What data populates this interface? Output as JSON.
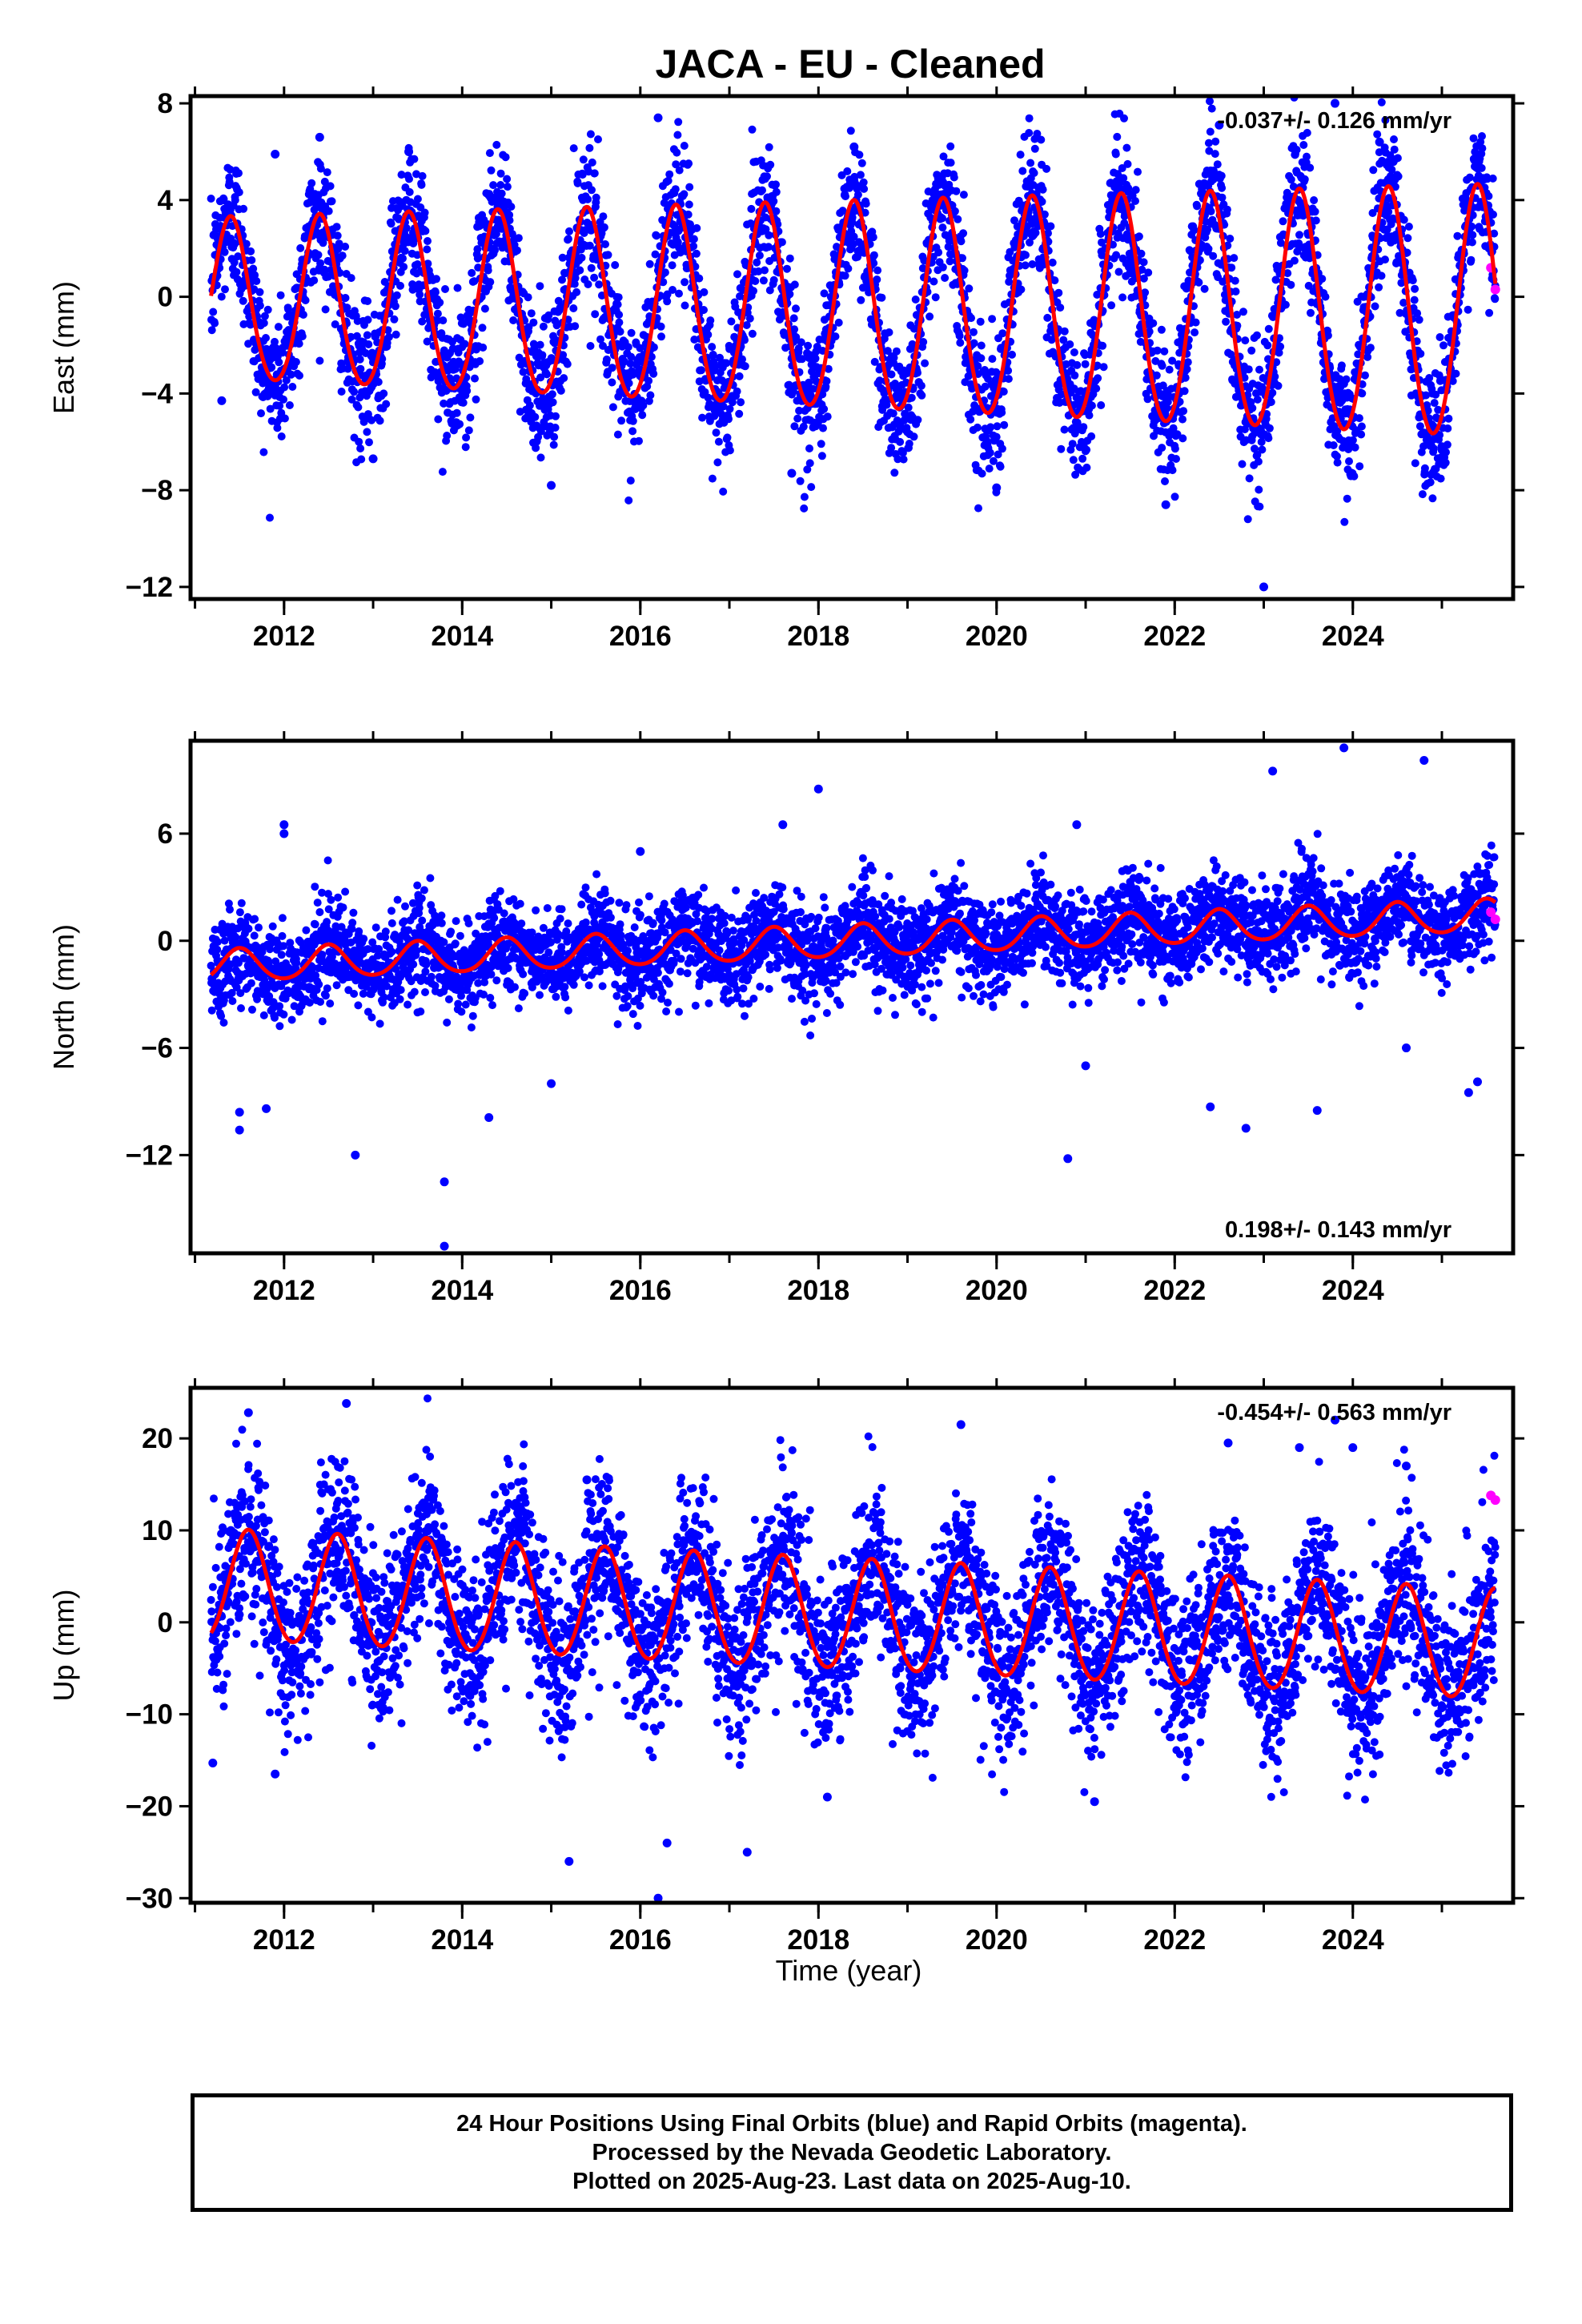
{
  "chart_data": {
    "title": "JACA  - EU - Cleaned",
    "xlabel": "Time (year)",
    "x_ticks": [
      "2012",
      "2014",
      "2016",
      "2018",
      "2020",
      "2022",
      "2024"
    ],
    "xlim": [
      2010.95,
      2025.8
    ],
    "colors": {
      "final": "#0000ff",
      "rapid": "#ff00ff",
      "model": "#ff0000"
    },
    "panels": [
      {
        "type": "scatter",
        "name": "east",
        "ylabel": "East (mm)",
        "ylim": [
          -12.5,
          8.3
        ],
        "y_ticks": [
          "8",
          "4",
          "0",
          "−4",
          "−8",
          "−12"
        ],
        "rate": "-0.037+/- 0.126 mm/yr",
        "rate_position": "top-right",
        "model": {
          "offset": -0.3,
          "trend": -0.037,
          "amplitude": 3.3,
          "amp_growth": 0.04,
          "peak_phase": 0.4,
          "semi_annual": 0.3
        },
        "scatter_sd": 1.45,
        "outliers": [
          [
            2011.9,
            5.9
          ],
          [
            2012.4,
            6.6
          ],
          [
            2013.4,
            6.0
          ],
          [
            2013.0,
            -6.7
          ],
          [
            2015.0,
            -7.8
          ],
          [
            2016.2,
            7.4
          ],
          [
            2017.7,
            -7.3
          ],
          [
            2018.4,
            6.2
          ],
          [
            2020.0,
            -7.9
          ],
          [
            2021.9,
            -8.6
          ],
          [
            2023.0,
            -12.0
          ],
          [
            2022.5,
            7.1
          ],
          [
            2023.8,
            8.0
          ],
          [
            2024.3,
            6.4
          ],
          [
            2025.0,
            -6.2
          ],
          [
            2011.3,
            -4.3
          ]
        ],
        "rapid": [
          [
            2025.55,
            1.2
          ],
          [
            2025.6,
            0.3
          ]
        ]
      },
      {
        "type": "scatter",
        "name": "north",
        "ylabel": "North (mm)",
        "ylim": [
          -17.5,
          11.2
        ],
        "y_ticks": [
          "6",
          "0",
          "−6",
          "−12"
        ],
        "rate": "0.198+/- 0.143 mm/yr",
        "rate_position": "bottom-right",
        "model": {
          "offset": -1.5,
          "trend": 0.198,
          "amplitude": 0.9,
          "amp_growth": 0.0,
          "peak_phase": 0.5,
          "semi_annual": 0.1
        },
        "scatter_sd": 1.3,
        "outliers": [
          [
            2011.5,
            -10.6
          ],
          [
            2011.5,
            -9.6
          ],
          [
            2011.8,
            -9.4
          ],
          [
            2012.0,
            6.5
          ],
          [
            2012.0,
            6.0
          ],
          [
            2012.8,
            -12.0
          ],
          [
            2013.8,
            -13.5
          ],
          [
            2013.8,
            -17.1
          ],
          [
            2014.3,
            -9.9
          ],
          [
            2015.0,
            -8.0
          ],
          [
            2016.0,
            5.0
          ],
          [
            2017.6,
            6.5
          ],
          [
            2018.0,
            8.5
          ],
          [
            2020.8,
            -12.2
          ],
          [
            2020.9,
            6.5
          ],
          [
            2021.0,
            -7.0
          ],
          [
            2022.4,
            -9.3
          ],
          [
            2022.8,
            -10.5
          ],
          [
            2023.1,
            9.5
          ],
          [
            2023.6,
            -9.5
          ],
          [
            2023.9,
            10.8
          ],
          [
            2024.8,
            10.1
          ],
          [
            2025.3,
            -8.5
          ],
          [
            2025.4,
            -7.9
          ],
          [
            2024.6,
            -6.0
          ]
        ],
        "rapid": [
          [
            2025.55,
            1.6
          ],
          [
            2025.6,
            1.2
          ]
        ]
      },
      {
        "type": "scatter",
        "name": "up",
        "ylabel": "Up (mm)",
        "ylim": [
          -30.5,
          25.5
        ],
        "y_ticks": [
          "20",
          "10",
          "0",
          "−10",
          "−20",
          "−30"
        ],
        "rate": "-0.454+/- 0.563 mm/yr",
        "rate_position": "top-right",
        "model": {
          "offset": 4.0,
          "trend": -0.454,
          "amplitude": 6.0,
          "amp_growth": 0.0,
          "peak_phase": 0.6,
          "semi_annual": 0.35
        },
        "scatter_sd": 4.6,
        "outliers": [
          [
            2011.6,
            22.8
          ],
          [
            2012.7,
            23.8
          ],
          [
            2011.9,
            -16.5
          ],
          [
            2015.2,
            -26.0
          ],
          [
            2016.2,
            -30.0
          ],
          [
            2016.3,
            -24.0
          ],
          [
            2017.2,
            -25.0
          ],
          [
            2019.6,
            21.5
          ],
          [
            2018.1,
            -19.0
          ],
          [
            2021.1,
            -19.5
          ],
          [
            2022.6,
            19.5
          ],
          [
            2023.4,
            19.0
          ],
          [
            2023.8,
            22.0
          ],
          [
            2024.0,
            19.0
          ],
          [
            2024.6,
            17.0
          ],
          [
            2015.4,
            15.5
          ],
          [
            2011.2,
            -15.3
          ]
        ],
        "rapid": [
          [
            2025.55,
            13.8
          ],
          [
            2025.6,
            13.3
          ]
        ]
      }
    ]
  },
  "footer": {
    "line1": "24 Hour Positions Using Final Orbits (blue) and Rapid Orbits (magenta).",
    "line2": "Processed by the Nevada Geodetic Laboratory.",
    "line3": "Plotted on 2025-Aug-23. Last data on 2025-Aug-10."
  }
}
